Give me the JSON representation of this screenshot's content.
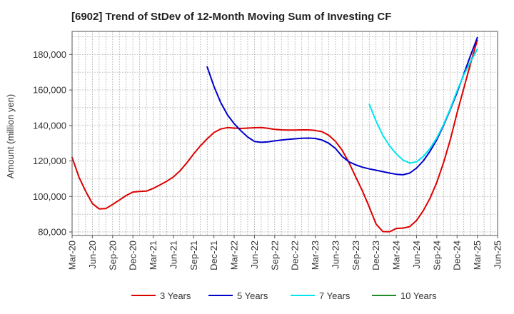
{
  "chart_data": {
    "type": "line",
    "title": "[6902]  Trend of StDev of 12-Month Moving Sum of Investing CF",
    "xlabel": "",
    "ylabel": "Amount (million yen)",
    "ylim": [
      78000,
      193000
    ],
    "y_ticks": [
      80000,
      100000,
      120000,
      140000,
      160000,
      180000
    ],
    "y_tick_labels": [
      "80,000",
      "100,000",
      "120,000",
      "140,000",
      "160,000",
      "180,000"
    ],
    "x_tick_labels": [
      "Mar-20",
      "Jun-20",
      "Sep-20",
      "Dec-20",
      "Mar-21",
      "Jun-21",
      "Sep-21",
      "Dec-21",
      "Mar-22",
      "Jun-22",
      "Sep-22",
      "Dec-22",
      "Mar-23",
      "Jun-23",
      "Sep-23",
      "Dec-23",
      "Mar-24",
      "Jun-24",
      "Sep-24",
      "Dec-24",
      "Mar-25",
      "Jun-25"
    ],
    "x_start": "Mar-20",
    "x_end": "Jun-25",
    "grid": true,
    "legend_position": "bottom",
    "series": [
      {
        "name": "3 Years",
        "color": "#dd0000",
        "points": [
          [
            "Mar-20",
            122000
          ],
          [
            "Apr-20",
            111000
          ],
          [
            "May-20",
            103000
          ],
          [
            "Jun-20",
            96000
          ],
          [
            "Jul-20",
            93000
          ],
          [
            "Aug-20",
            93200
          ],
          [
            "Sep-20",
            95500
          ],
          [
            "Oct-20",
            98000
          ],
          [
            "Nov-20",
            100500
          ],
          [
            "Dec-20",
            102500
          ],
          [
            "Jan-21",
            102800
          ],
          [
            "Feb-21",
            103000
          ],
          [
            "Mar-21",
            104500
          ],
          [
            "Apr-21",
            106500
          ],
          [
            "May-21",
            108500
          ],
          [
            "Jun-21",
            111000
          ],
          [
            "Jul-21",
            114500
          ],
          [
            "Aug-21",
            119000
          ],
          [
            "Sep-21",
            124000
          ],
          [
            "Oct-21",
            128500
          ],
          [
            "Nov-21",
            132500
          ],
          [
            "Dec-21",
            136000
          ],
          [
            "Jan-22",
            138000
          ],
          [
            "Feb-22",
            138800
          ],
          [
            "Mar-22",
            138500
          ],
          [
            "Apr-22",
            138300
          ],
          [
            "May-22",
            138500
          ],
          [
            "Jun-22",
            138700
          ],
          [
            "Jul-22",
            138800
          ],
          [
            "Aug-22",
            138400
          ],
          [
            "Sep-22",
            137800
          ],
          [
            "Oct-22",
            137500
          ],
          [
            "Nov-22",
            137400
          ],
          [
            "Dec-22",
            137400
          ],
          [
            "Jan-23",
            137500
          ],
          [
            "Feb-23",
            137500
          ],
          [
            "Mar-23",
            137200
          ],
          [
            "Apr-23",
            136500
          ],
          [
            "May-23",
            134500
          ],
          [
            "Jun-23",
            131000
          ],
          [
            "Jul-23",
            126000
          ],
          [
            "Aug-23",
            119000
          ],
          [
            "Sep-23",
            111000
          ],
          [
            "Oct-23",
            103000
          ],
          [
            "Nov-23",
            94000
          ],
          [
            "Dec-23",
            84500
          ],
          [
            "Jan-24",
            80200
          ],
          [
            "Feb-24",
            80100
          ],
          [
            "Mar-24",
            82000
          ],
          [
            "Apr-24",
            82200
          ],
          [
            "May-24",
            83000
          ],
          [
            "Jun-24",
            86500
          ],
          [
            "Jul-24",
            92000
          ],
          [
            "Aug-24",
            99000
          ],
          [
            "Sep-24",
            108000
          ],
          [
            "Oct-24",
            119000
          ],
          [
            "Nov-24",
            132000
          ],
          [
            "Dec-24",
            147000
          ],
          [
            "Jan-25",
            161000
          ],
          [
            "Feb-25",
            175000
          ],
          [
            "Mar-25",
            188000
          ]
        ]
      },
      {
        "name": "5 Years",
        "color": "#0000cc",
        "points": [
          [
            "Nov-21",
            173000
          ],
          [
            "Dec-21",
            162000
          ],
          [
            "Jan-22",
            153000
          ],
          [
            "Feb-22",
            146000
          ],
          [
            "Mar-22",
            141000
          ],
          [
            "Apr-22",
            137000
          ],
          [
            "May-22",
            133500
          ],
          [
            "Jun-22",
            131000
          ],
          [
            "Jul-22",
            130500
          ],
          [
            "Aug-22",
            130800
          ],
          [
            "Sep-22",
            131300
          ],
          [
            "Oct-22",
            131800
          ],
          [
            "Nov-22",
            132200
          ],
          [
            "Dec-22",
            132500
          ],
          [
            "Jan-23",
            132800
          ],
          [
            "Feb-23",
            132900
          ],
          [
            "Mar-23",
            132700
          ],
          [
            "Apr-23",
            131800
          ],
          [
            "May-23",
            130000
          ],
          [
            "Jun-23",
            127000
          ],
          [
            "Jul-23",
            122500
          ],
          [
            "Aug-23",
            119500
          ],
          [
            "Sep-23",
            117800
          ],
          [
            "Oct-23",
            116500
          ],
          [
            "Nov-23",
            115500
          ],
          [
            "Dec-23",
            114800
          ],
          [
            "Jan-24",
            114000
          ],
          [
            "Feb-24",
            113200
          ],
          [
            "Mar-24",
            112500
          ],
          [
            "Apr-24",
            112200
          ],
          [
            "May-24",
            113200
          ],
          [
            "Jun-24",
            116000
          ],
          [
            "Jul-24",
            120000
          ],
          [
            "Aug-24",
            125500
          ],
          [
            "Sep-24",
            132000
          ],
          [
            "Oct-24",
            140000
          ],
          [
            "Nov-24",
            149000
          ],
          [
            "Dec-24",
            158500
          ],
          [
            "Jan-25",
            169000
          ],
          [
            "Feb-25",
            179500
          ],
          [
            "Mar-25",
            189500
          ]
        ]
      },
      {
        "name": "7 Years",
        "color": "#00e5ee",
        "points": [
          [
            "Nov-23",
            152000
          ],
          [
            "Dec-23",
            142500
          ],
          [
            "Jan-24",
            134500
          ],
          [
            "Feb-24",
            128500
          ],
          [
            "Mar-24",
            124000
          ],
          [
            "Apr-24",
            120500
          ],
          [
            "May-24",
            118800
          ],
          [
            "Jun-24",
            119500
          ],
          [
            "Jul-24",
            122500
          ],
          [
            "Aug-24",
            127000
          ],
          [
            "Sep-24",
            133000
          ],
          [
            "Oct-24",
            140500
          ],
          [
            "Nov-24",
            149500
          ],
          [
            "Dec-24",
            159500
          ],
          [
            "Jan-25",
            168500
          ],
          [
            "Feb-25",
            176000
          ],
          [
            "Mar-25",
            183000
          ]
        ]
      },
      {
        "name": "10 Years",
        "color": "#228b22",
        "points": []
      }
    ]
  }
}
